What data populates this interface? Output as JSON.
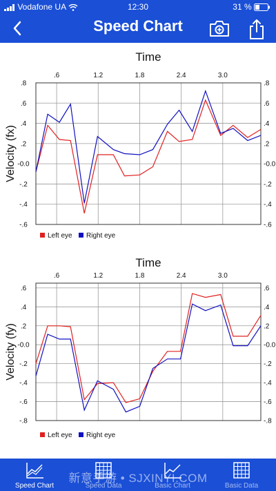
{
  "status_bar": {
    "carrier": "Vodafone UA",
    "time": "12:30",
    "battery": "31 %"
  },
  "nav": {
    "title": "Speed Chart",
    "back_icon": "back-chevron-icon",
    "camera_icon": "camera-plus-icon",
    "share_icon": "share-icon"
  },
  "colors": {
    "brand": "#1a4fd6",
    "left_eye": "#e02020",
    "right_eye": "#1010c0"
  },
  "chart_data": [
    {
      "type": "line",
      "title": "Time",
      "ylabel": "Velocity (fx)",
      "xlim": [
        0.3,
        3.55
      ],
      "ylim": [
        -0.6,
        0.8
      ],
      "x_ticks": [
        0.6,
        1.2,
        1.8,
        2.4,
        3.0
      ],
      "x_tick_labels": [
        ".6",
        "1.2",
        "1.8",
        "2.4",
        "3.0"
      ],
      "y_ticks": [
        -0.6,
        -0.4,
        -0.2,
        0.0,
        0.2,
        0.4,
        0.6,
        0.8
      ],
      "y_tick_labels": [
        "-.6",
        "-.4",
        "-.2",
        "-0.0",
        ".2",
        ".4",
        ".6",
        ".8"
      ],
      "x": [
        0.3,
        0.47,
        0.64,
        0.8,
        1.0,
        1.19,
        1.42,
        1.58,
        1.8,
        1.99,
        2.2,
        2.37,
        2.56,
        2.75,
        2.97,
        3.15,
        3.36,
        3.55
      ],
      "series": [
        {
          "name": "Left eye",
          "color": "#e02020",
          "values": [
            -0.08,
            0.38,
            0.24,
            0.23,
            -0.49,
            0.09,
            0.09,
            -0.12,
            -0.11,
            -0.03,
            0.32,
            0.22,
            0.24,
            0.63,
            0.28,
            0.38,
            0.26,
            0.34
          ]
        },
        {
          "name": "Right eye",
          "color": "#1010c0",
          "values": [
            -0.08,
            0.49,
            0.41,
            0.59,
            -0.39,
            0.27,
            0.14,
            0.1,
            0.09,
            0.14,
            0.39,
            0.53,
            0.32,
            0.72,
            0.3,
            0.35,
            0.23,
            0.28
          ]
        }
      ],
      "legend": "bottom-left",
      "grid": true
    },
    {
      "type": "line",
      "title": "Time",
      "ylabel": "Velocity (fy)",
      "xlim": [
        0.3,
        3.55
      ],
      "ylim": [
        -0.8,
        0.65
      ],
      "x_ticks": [
        0.6,
        1.2,
        1.8,
        2.4,
        3.0
      ],
      "x_tick_labels": [
        ".6",
        "1.2",
        "1.8",
        "2.4",
        "3.0"
      ],
      "y_ticks": [
        -0.8,
        -0.6,
        -0.4,
        -0.2,
        0.0,
        0.2,
        0.4,
        0.6
      ],
      "y_tick_labels": [
        "-.8",
        "-.6",
        "-.4",
        "-.2",
        "-0.0",
        ".2",
        ".4",
        ".6"
      ],
      "x": [
        0.3,
        0.47,
        0.64,
        0.8,
        1.0,
        1.19,
        1.42,
        1.6,
        1.8,
        1.99,
        2.2,
        2.39,
        2.56,
        2.75,
        2.97,
        3.15,
        3.36,
        3.55
      ],
      "series": [
        {
          "name": "Left eye",
          "color": "#e02020",
          "values": [
            -0.2,
            0.2,
            0.2,
            0.19,
            -0.58,
            -0.41,
            -0.4,
            -0.61,
            -0.57,
            -0.28,
            -0.07,
            -0.07,
            0.54,
            0.5,
            0.53,
            0.09,
            0.09,
            0.31
          ]
        },
        {
          "name": "Right eye",
          "color": "#1010c0",
          "values": [
            -0.33,
            0.11,
            0.06,
            0.06,
            -0.69,
            -0.38,
            -0.47,
            -0.71,
            -0.65,
            -0.25,
            -0.15,
            -0.15,
            0.43,
            0.36,
            0.42,
            -0.01,
            -0.01,
            0.2
          ]
        }
      ],
      "legend": "bottom-left",
      "grid": true
    }
  ],
  "tabs": [
    {
      "label": "Speed Chart",
      "icon": "line-chart-icon",
      "active": true
    },
    {
      "label": "Speed Data",
      "icon": "grid-table-icon",
      "active": false
    },
    {
      "label": "Basic Chart",
      "icon": "line-chart-icon",
      "active": false
    },
    {
      "label": "Basic Data",
      "icon": "grid-table-icon",
      "active": false
    }
  ],
  "watermark": "新意手游 • SJXINYI.COM"
}
